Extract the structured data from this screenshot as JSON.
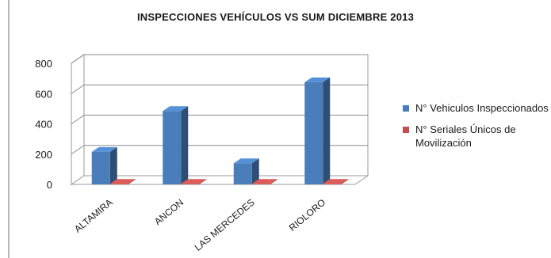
{
  "chart_data": {
    "type": "bar",
    "title": "INSPECCIONES VEHÍCULOS VS SUM  DICIEMBRE 2013",
    "categories": [
      "ALTAMIRA",
      "ANCON",
      "LAS MERCEDES",
      "RIOLORO"
    ],
    "series": [
      {
        "name": "N° Vehiculos Inspeccionados",
        "values": [
          215,
          485,
          140,
          675
        ],
        "color": "#4a7ebb"
      },
      {
        "name": "N° Seriales Únicos de Movilización",
        "values": [
          4,
          4,
          4,
          4
        ],
        "color": "#c0504d"
      }
    ],
    "ylim": [
      0,
      800
    ],
    "yticks": [
      0,
      200,
      400,
      600,
      800
    ],
    "grid": true,
    "legend_position": "right",
    "style": "3d-clustered-column"
  }
}
